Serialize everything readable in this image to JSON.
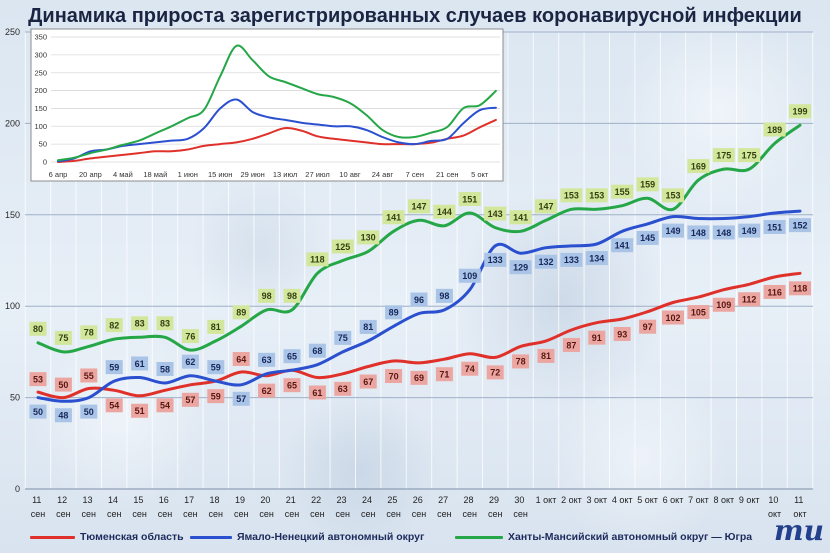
{
  "chart_data": [
    {
      "type": "line",
      "title": "Динамика прироста зарегистрированных случаев коронавирусной инфекции",
      "categories": [
        "11 сен",
        "12 сен",
        "13 сен",
        "14 сен",
        "15 сен",
        "16 сен",
        "17 сен",
        "18 сен",
        "19 сен",
        "20 сен",
        "21 сен",
        "22 сен",
        "23 сен",
        "24 сен",
        "25 сен",
        "26 сен",
        "27 сен",
        "28 сен",
        "29 сен",
        "30 сен",
        "1 окт",
        "2 окт",
        "3 окт",
        "4 окт",
        "5 окт",
        "6 окт",
        "7 окт",
        "8 окт",
        "9 окт",
        "10 окт",
        "11 окт"
      ],
      "ylim": [
        0,
        250
      ],
      "yticks": [
        0,
        50,
        100,
        150,
        200,
        250
      ],
      "grid": true,
      "legend": "bottom",
      "data_labels": true,
      "series": [
        {
          "name": "Тюменская область",
          "color": "#e0302a",
          "label_bg": "#eca6a1",
          "label_color": "#5a1712",
          "values": [
            53,
            50,
            55,
            54,
            51,
            54,
            57,
            59,
            64,
            62,
            65,
            61,
            63,
            67,
            70,
            69,
            71,
            74,
            72,
            78,
            81,
            87,
            91,
            93,
            97,
            102,
            105,
            109,
            112,
            116,
            118
          ]
        },
        {
          "name": "Ямало-Ненецкий автономный округ",
          "color": "#2b50cf",
          "label_bg": "#a9c4e7",
          "label_color": "#17285a",
          "values": [
            50,
            48,
            50,
            59,
            61,
            58,
            62,
            59,
            57,
            63,
            65,
            68,
            75,
            81,
            89,
            96,
            98,
            109,
            133,
            129,
            132,
            133,
            134,
            141,
            145,
            149,
            148,
            148,
            149,
            151,
            152
          ]
        },
        {
          "name": "Ханты-Мансийский автономный округ — Югра",
          "color": "#25a748",
          "label_bg": "#d3e79c",
          "label_color": "#344010",
          "values": [
            80,
            75,
            78,
            82,
            83,
            83,
            76,
            81,
            89,
            98,
            98,
            118,
            125,
            130,
            141,
            147,
            144,
            151,
            143,
            141,
            147,
            153,
            153,
            155,
            159,
            153,
            169,
            175,
            175,
            189,
            199
          ]
        }
      ]
    },
    {
      "type": "line",
      "categories": [
        "6 апр",
        "",
        "20 апр",
        "",
        "4 май",
        "",
        "18 май",
        "",
        "1 июн",
        "",
        "15 июн",
        "",
        "29 июн",
        "",
        "13 июл",
        "",
        "27 июл",
        "",
        "10 авг",
        "",
        "24 авг",
        "",
        "7 сен",
        "",
        "21 сен",
        "",
        "5 окт",
        ""
      ],
      "ylim": [
        0,
        350
      ],
      "yticks": [
        0,
        50,
        100,
        150,
        200,
        250,
        300,
        350
      ],
      "grid": true,
      "series": [
        {
          "color": "#e0302a",
          "values": [
            0,
            3,
            10,
            15,
            20,
            25,
            30,
            30,
            35,
            45,
            50,
            55,
            65,
            80,
            95,
            88,
            72,
            65,
            60,
            55,
            50,
            50,
            50,
            54,
            65,
            74,
            97,
            118
          ]
        },
        {
          "color": "#2b50cf",
          "values": [
            2,
            10,
            30,
            35,
            45,
            50,
            55,
            60,
            65,
            95,
            150,
            175,
            140,
            125,
            118,
            110,
            105,
            100,
            100,
            90,
            70,
            55,
            50,
            59,
            65,
            109,
            145,
            152
          ]
        },
        {
          "color": "#25a748",
          "values": [
            5,
            12,
            25,
            35,
            48,
            60,
            80,
            100,
            123,
            146,
            240,
            325,
            285,
            240,
            224,
            207,
            190,
            182,
            165,
            132,
            90,
            70,
            70,
            82,
            98,
            151,
            159,
            199
          ]
        }
      ]
    }
  ],
  "logo": {
    "text": "mu"
  }
}
